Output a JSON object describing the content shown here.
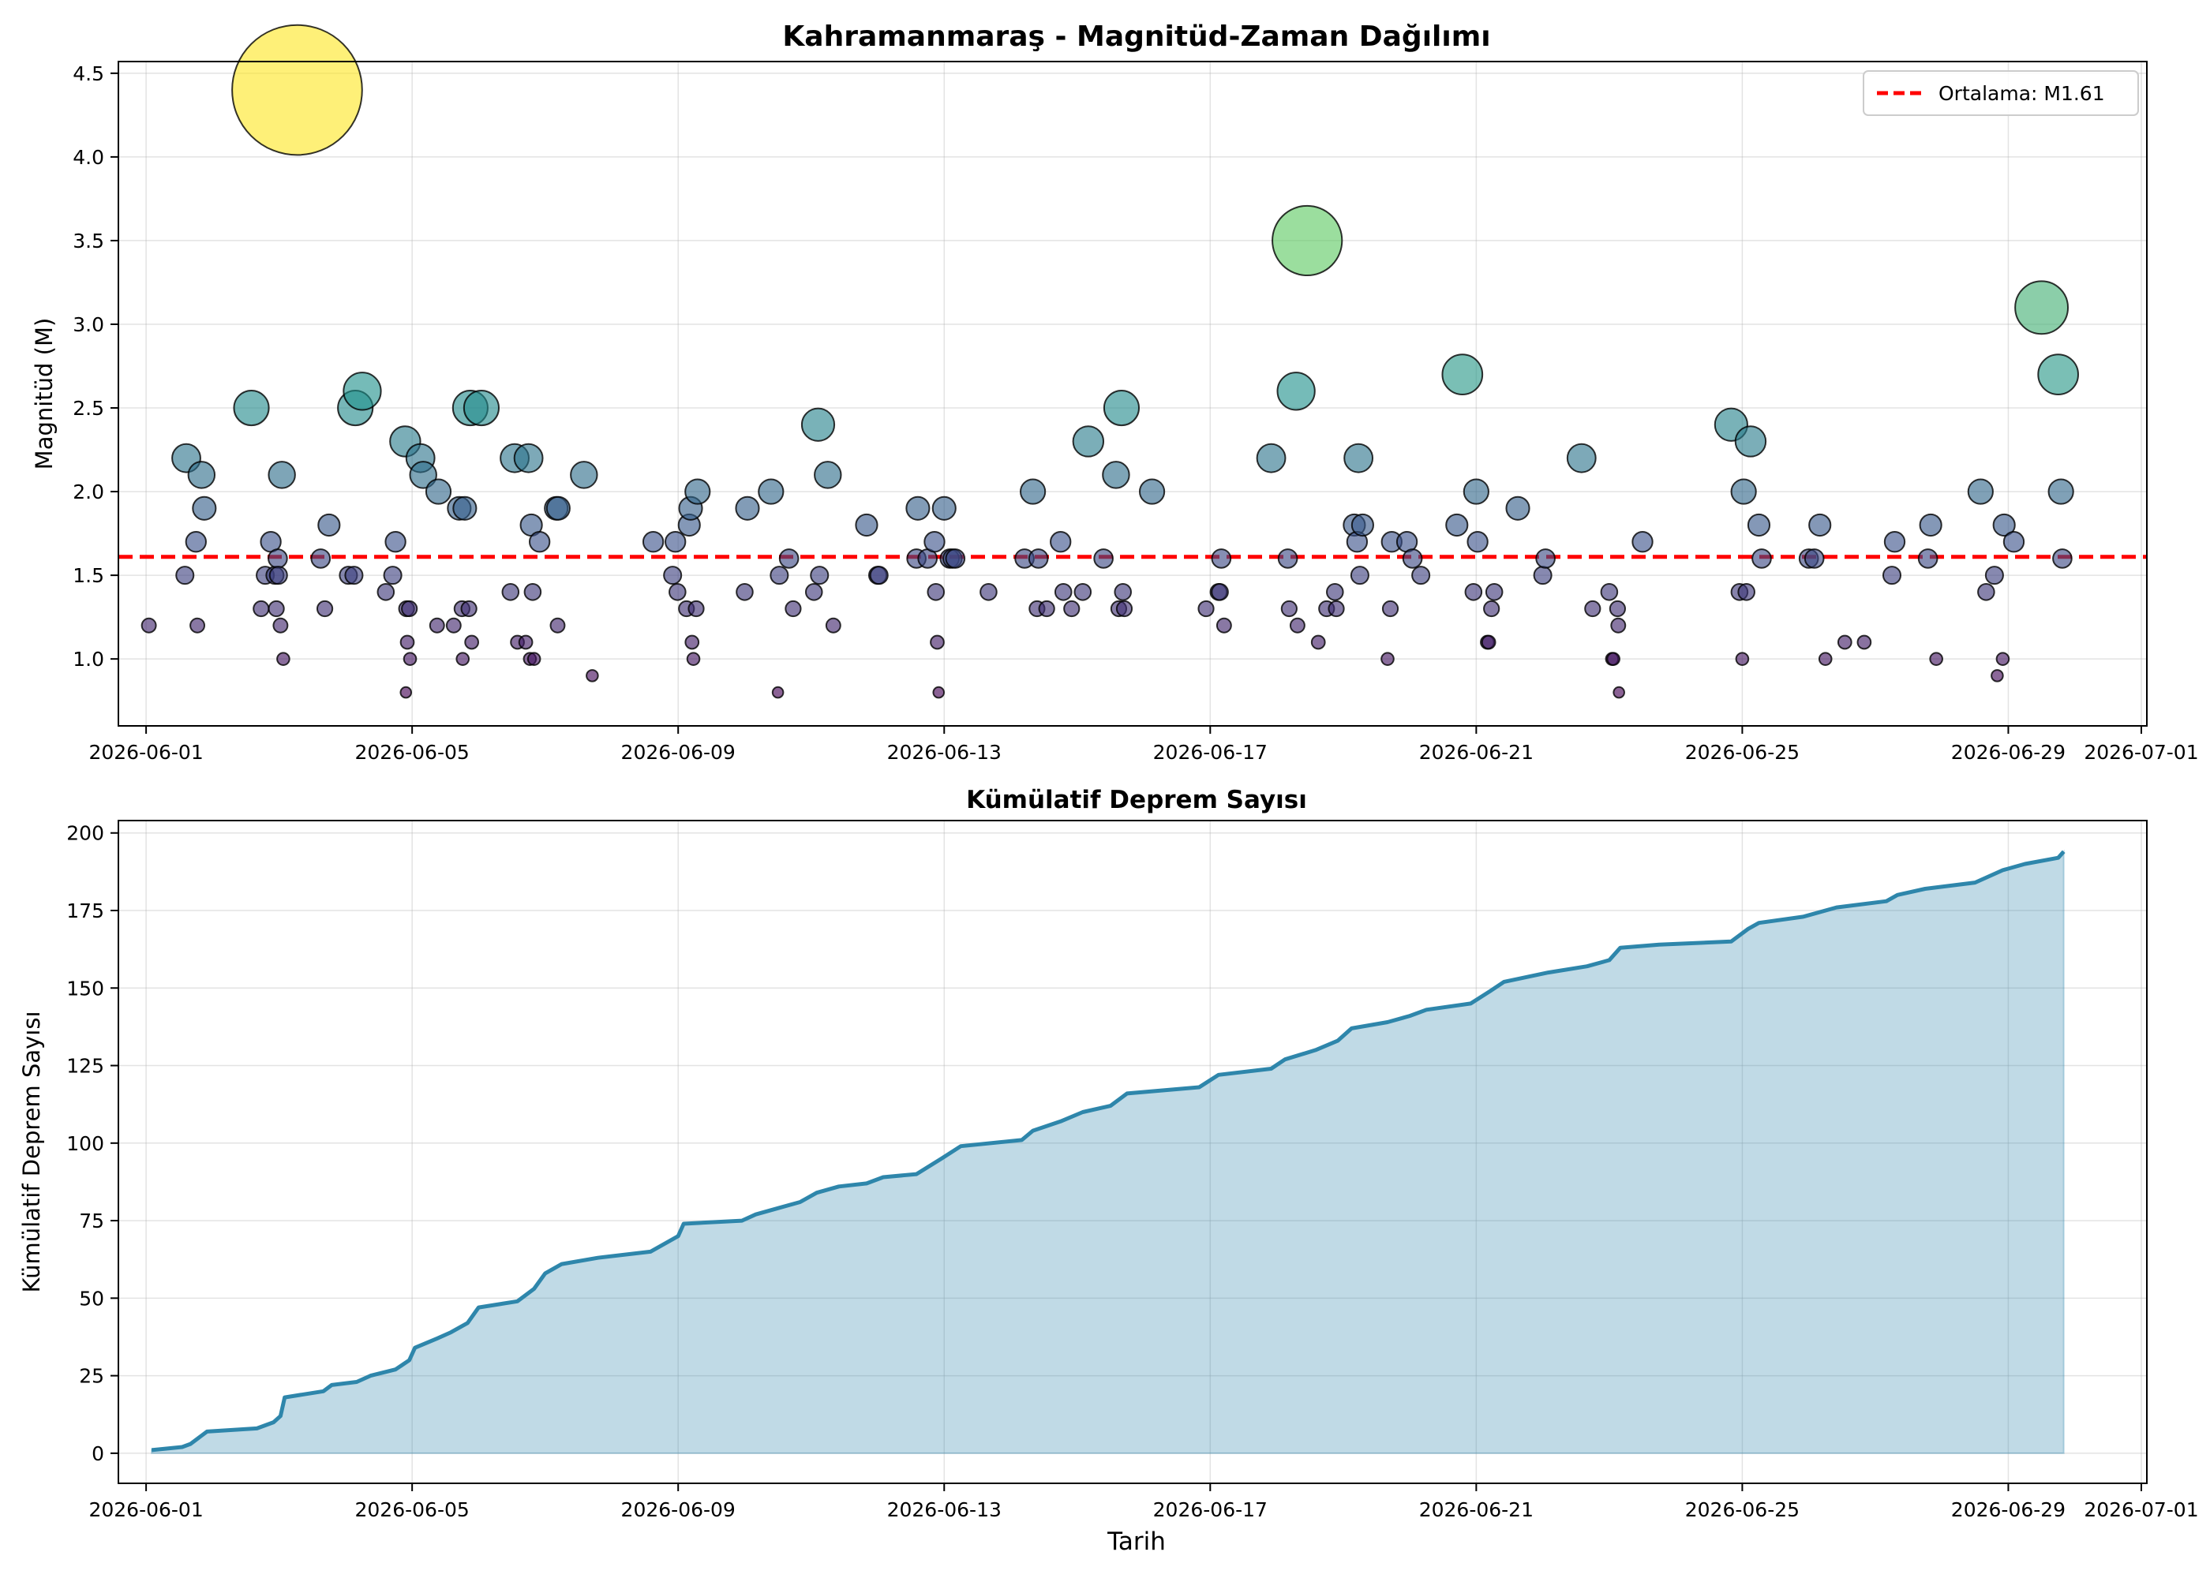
{
  "chart_data": [
    {
      "type": "scatter",
      "title": "Kahramanmaraş - Magnitüd-Zaman Dağılımı",
      "xlabel": "",
      "ylabel": "Magnitüd (M)",
      "xlim": [
        "2026-05-31 14:00",
        "2026-07-01 02:00"
      ],
      "ylim": [
        0.6,
        4.57
      ],
      "grid": true,
      "legend_position": "top-right",
      "x_ticks": [
        "2026-06-01",
        "2026-06-05",
        "2026-06-09",
        "2026-06-13",
        "2026-06-17",
        "2026-06-21",
        "2026-06-25",
        "2026-06-29",
        "2026-07-01"
      ],
      "y_ticks": [
        "1.0",
        "1.5",
        "2.0",
        "2.5",
        "3.0",
        "3.5",
        "4.0",
        "4.5"
      ],
      "colormap": [
        "#440154",
        "#3b528b",
        "#21918c",
        "#5ec962",
        "#fde725"
      ],
      "mean_line": {
        "value": 1.61,
        "label": "Ortalama: M1.61",
        "color": "#ff0000"
      },
      "points": [
        [
          "2026-06-01 01:00",
          1.2
        ],
        [
          "2026-06-01 14:00",
          1.5
        ],
        [
          "2026-06-01 14:30",
          2.2
        ],
        [
          "2026-06-01 18:00",
          1.7
        ],
        [
          "2026-06-01 18:30",
          1.2
        ],
        [
          "2026-06-01 20:00",
          2.1
        ],
        [
          "2026-06-01 21:00",
          1.9
        ],
        [
          "2026-06-02 14:00",
          2.5
        ],
        [
          "2026-06-02 17:30",
          1.3
        ],
        [
          "2026-06-02 19:00",
          1.5
        ],
        [
          "2026-06-02 21:00",
          1.7
        ],
        [
          "2026-06-02 22:30",
          1.5
        ],
        [
          "2026-06-02 23:00",
          1.3
        ],
        [
          "2026-06-02 23:30",
          1.6
        ],
        [
          "2026-06-02 23:45",
          1.5
        ],
        [
          "2026-06-03 00:30",
          1.2
        ],
        [
          "2026-06-03 01:00",
          2.1
        ],
        [
          "2026-06-03 01:30",
          1.0
        ],
        [
          "2026-06-03 06:30",
          4.4
        ],
        [
          "2026-06-03 15:00",
          1.6
        ],
        [
          "2026-06-03 16:30",
          1.3
        ],
        [
          "2026-06-03 18:00",
          1.8
        ],
        [
          "2026-06-04 01:00",
          1.5
        ],
        [
          "2026-06-04 03:00",
          1.5
        ],
        [
          "2026-06-04 03:30",
          2.5
        ],
        [
          "2026-06-04 06:00",
          2.6
        ],
        [
          "2026-06-04 14:30",
          1.4
        ],
        [
          "2026-06-04 17:00",
          1.5
        ],
        [
          "2026-06-04 18:00",
          1.7
        ],
        [
          "2026-06-04 21:30",
          2.3
        ],
        [
          "2026-06-04 21:45",
          0.8
        ],
        [
          "2026-06-04 22:00",
          1.3
        ],
        [
          "2026-06-04 22:15",
          1.1
        ],
        [
          "2026-06-04 23:00",
          1.3
        ],
        [
          "2026-06-04 23:15",
          1.0
        ],
        [
          "2026-06-05 03:00",
          2.2
        ],
        [
          "2026-06-05 04:00",
          2.1
        ],
        [
          "2026-06-05 09:00",
          1.2
        ],
        [
          "2026-06-05 09:30",
          2.0
        ],
        [
          "2026-06-05 15:00",
          1.2
        ],
        [
          "2026-06-05 17:00",
          1.9
        ],
        [
          "2026-06-05 18:00",
          1.3
        ],
        [
          "2026-06-05 18:15",
          1.0
        ],
        [
          "2026-06-05 19:00",
          1.9
        ],
        [
          "2026-06-05 20:30",
          1.3
        ],
        [
          "2026-06-05 21:00",
          2.5
        ],
        [
          "2026-06-05 21:30",
          1.1
        ],
        [
          "2026-06-06 01:00",
          2.5
        ],
        [
          "2026-06-06 11:30",
          1.4
        ],
        [
          "2026-06-06 13:00",
          2.2
        ],
        [
          "2026-06-06 14:00",
          1.1
        ],
        [
          "2026-06-06 17:00",
          1.1
        ],
        [
          "2026-06-06 18:00",
          2.2
        ],
        [
          "2026-06-06 18:30",
          1.0
        ],
        [
          "2026-06-06 19:00",
          1.8
        ],
        [
          "2026-06-06 19:30",
          1.4
        ],
        [
          "2026-06-06 20:00",
          1.0
        ],
        [
          "2026-06-06 22:00",
          1.7
        ],
        [
          "2026-06-07 04:00",
          1.9
        ],
        [
          "2026-06-07 04:30",
          1.2
        ],
        [
          "2026-06-07 04:45",
          1.9
        ],
        [
          "2026-06-07 14:00",
          2.1
        ],
        [
          "2026-06-07 17:00",
          0.9
        ],
        [
          "2026-06-08 15:00",
          1.7
        ],
        [
          "2026-06-08 22:00",
          1.5
        ],
        [
          "2026-06-08 23:00",
          1.7
        ],
        [
          "2026-06-08 23:45",
          1.4
        ],
        [
          "2026-06-09 03:00",
          1.3
        ],
        [
          "2026-06-09 04:00",
          1.8
        ],
        [
          "2026-06-09 04:30",
          1.9
        ],
        [
          "2026-06-09 05:00",
          1.1
        ],
        [
          "2026-06-09 05:30",
          1.0
        ],
        [
          "2026-06-09 06:30",
          1.3
        ],
        [
          "2026-06-09 07:00",
          2.0
        ],
        [
          "2026-06-10 00:00",
          1.4
        ],
        [
          "2026-06-10 01:00",
          1.9
        ],
        [
          "2026-06-10 09:30",
          2.0
        ],
        [
          "2026-06-10 12:00",
          0.8
        ],
        [
          "2026-06-10 12:30",
          1.5
        ],
        [
          "2026-06-10 16:00",
          1.6
        ],
        [
          "2026-06-10 17:30",
          1.3
        ],
        [
          "2026-06-11 01:00",
          1.4
        ],
        [
          "2026-06-11 02:30",
          2.4
        ],
        [
          "2026-06-11 03:00",
          1.5
        ],
        [
          "2026-06-11 06:00",
          2.1
        ],
        [
          "2026-06-11 08:00",
          1.2
        ],
        [
          "2026-06-11 20:00",
          1.8
        ],
        [
          "2026-06-12 00:00",
          1.5
        ],
        [
          "2026-06-12 00:30",
          1.5
        ],
        [
          "2026-06-12 14:00",
          1.6
        ],
        [
          "2026-06-12 14:30",
          1.9
        ],
        [
          "2026-06-12 18:00",
          1.6
        ],
        [
          "2026-06-12 20:30",
          1.7
        ],
        [
          "2026-06-12 21:00",
          1.4
        ],
        [
          "2026-06-12 21:30",
          1.1
        ],
        [
          "2026-06-12 22:00",
          0.8
        ],
        [
          "2026-06-13 00:00",
          1.9
        ],
        [
          "2026-06-13 02:00",
          1.6
        ],
        [
          "2026-06-13 03:00",
          1.6
        ],
        [
          "2026-06-13 04:00",
          1.6
        ],
        [
          "2026-06-13 16:00",
          1.4
        ],
        [
          "2026-06-14 05:00",
          1.6
        ],
        [
          "2026-06-14 08:00",
          2.0
        ],
        [
          "2026-06-14 09:30",
          1.3
        ],
        [
          "2026-06-14 10:00",
          1.6
        ],
        [
          "2026-06-14 13:00",
          1.3
        ],
        [
          "2026-06-14 18:00",
          1.7
        ],
        [
          "2026-06-14 19:00",
          1.4
        ],
        [
          "2026-06-14 22:00",
          1.3
        ],
        [
          "2026-06-15 02:00",
          1.4
        ],
        [
          "2026-06-15 04:00",
          2.3
        ],
        [
          "2026-06-15 09:30",
          1.6
        ],
        [
          "2026-06-15 14:00",
          2.1
        ],
        [
          "2026-06-15 15:00",
          1.3
        ],
        [
          "2026-06-15 16:00",
          2.5
        ],
        [
          "2026-06-15 16:30",
          1.4
        ],
        [
          "2026-06-15 17:00",
          1.3
        ],
        [
          "2026-06-16 03:00",
          2.0
        ],
        [
          "2026-06-16 22:30",
          1.3
        ],
        [
          "2026-06-17 03:00",
          1.4
        ],
        [
          "2026-06-17 03:30",
          1.4
        ],
        [
          "2026-06-17 04:00",
          1.6
        ],
        [
          "2026-06-17 05:00",
          1.2
        ],
        [
          "2026-06-17 22:00",
          2.2
        ],
        [
          "2026-06-18 04:00",
          1.6
        ],
        [
          "2026-06-18 04:30",
          1.3
        ],
        [
          "2026-06-18 07:00",
          2.6
        ],
        [
          "2026-06-18 07:30",
          1.2
        ],
        [
          "2026-06-18 11:00",
          3.5
        ],
        [
          "2026-06-18 15:00",
          1.1
        ],
        [
          "2026-06-18 18:00",
          1.3
        ],
        [
          "2026-06-18 21:00",
          1.4
        ],
        [
          "2026-06-18 21:30",
          1.3
        ],
        [
          "2026-06-19 04:00",
          1.8
        ],
        [
          "2026-06-19 05:00",
          1.7
        ],
        [
          "2026-06-19 05:30",
          2.2
        ],
        [
          "2026-06-19 06:00",
          1.5
        ],
        [
          "2026-06-19 07:00",
          1.8
        ],
        [
          "2026-06-19 16:00",
          1.0
        ],
        [
          "2026-06-19 17:00",
          1.3
        ],
        [
          "2026-06-19 17:30",
          1.7
        ],
        [
          "2026-06-19 23:00",
          1.7
        ],
        [
          "2026-06-20 01:00",
          1.6
        ],
        [
          "2026-06-20 04:00",
          1.5
        ],
        [
          "2026-06-20 17:00",
          1.8
        ],
        [
          "2026-06-20 19:00",
          2.7
        ],
        [
          "2026-06-20 23:00",
          1.4
        ],
        [
          "2026-06-21 00:00",
          2.0
        ],
        [
          "2026-06-21 00:30",
          1.7
        ],
        [
          "2026-06-21 04:00",
          1.1
        ],
        [
          "2026-06-21 04:30",
          1.1
        ],
        [
          "2026-06-21 05:30",
          1.3
        ],
        [
          "2026-06-21 06:30",
          1.4
        ],
        [
          "2026-06-21 15:00",
          1.9
        ],
        [
          "2026-06-22 00:00",
          1.5
        ],
        [
          "2026-06-22 01:00",
          1.6
        ],
        [
          "2026-06-22 14:00",
          2.2
        ],
        [
          "2026-06-22 18:00",
          1.3
        ],
        [
          "2026-06-23 00:00",
          1.4
        ],
        [
          "2026-06-23 01:00",
          1.0
        ],
        [
          "2026-06-23 01:30",
          1.0
        ],
        [
          "2026-06-23 03:00",
          1.3
        ],
        [
          "2026-06-23 03:15",
          1.2
        ],
        [
          "2026-06-23 03:30",
          0.8
        ],
        [
          "2026-06-23 12:00",
          1.7
        ],
        [
          "2026-06-24 20:00",
          2.4
        ],
        [
          "2026-06-24 23:00",
          1.4
        ],
        [
          "2026-06-25 00:00",
          1.0
        ],
        [
          "2026-06-25 00:30",
          2.0
        ],
        [
          "2026-06-25 01:30",
          1.4
        ],
        [
          "2026-06-25 03:00",
          2.3
        ],
        [
          "2026-06-25 06:00",
          1.8
        ],
        [
          "2026-06-25 07:00",
          1.6
        ],
        [
          "2026-06-26 00:00",
          1.6
        ],
        [
          "2026-06-26 02:00",
          1.6
        ],
        [
          "2026-06-26 04:00",
          1.8
        ],
        [
          "2026-06-26 06:00",
          1.0
        ],
        [
          "2026-06-26 13:00",
          1.1
        ],
        [
          "2026-06-26 20:00",
          1.1
        ],
        [
          "2026-06-27 06:00",
          1.5
        ],
        [
          "2026-06-27 07:00",
          1.7
        ],
        [
          "2026-06-27 19:00",
          1.6
        ],
        [
          "2026-06-27 20:00",
          1.8
        ],
        [
          "2026-06-27 22:00",
          1.0
        ],
        [
          "2026-06-28 14:00",
          2.0
        ],
        [
          "2026-06-28 16:00",
          1.4
        ],
        [
          "2026-06-28 19:00",
          1.5
        ],
        [
          "2026-06-28 20:00",
          0.9
        ],
        [
          "2026-06-28 22:00",
          1.0
        ],
        [
          "2026-06-28 22:30",
          1.8
        ],
        [
          "2026-06-29 02:00",
          1.7
        ],
        [
          "2026-06-29 12:00",
          3.1
        ],
        [
          "2026-06-29 18:00",
          2.7
        ],
        [
          "2026-06-29 19:00",
          2.0
        ],
        [
          "2026-06-29 19:30",
          1.6
        ]
      ]
    },
    {
      "type": "area",
      "title": "Kümülatif Deprem Sayısı",
      "xlabel": "Tarih",
      "ylabel": "Kümülatif Deprem Sayısı",
      "xlim": [
        "2026-05-31 14:00",
        "2026-07-01 02:00"
      ],
      "ylim": [
        -9.7,
        204
      ],
      "grid": true,
      "x_ticks": [
        "2026-06-01",
        "2026-06-05",
        "2026-06-09",
        "2026-06-13",
        "2026-06-17",
        "2026-06-21",
        "2026-06-25",
        "2026-06-29",
        "2026-07-01"
      ],
      "y_ticks": [
        "0",
        "25",
        "50",
        "75",
        "100",
        "125",
        "150",
        "175",
        "200"
      ],
      "line_color": "#2e86ab",
      "fill_color": "#2e86ab",
      "points": [
        [
          "2026-06-01 02:00",
          1
        ],
        [
          "2026-06-01 13:00",
          2
        ],
        [
          "2026-06-01 16:00",
          3
        ],
        [
          "2026-06-01 19:00",
          5
        ],
        [
          "2026-06-01 22:00",
          7
        ],
        [
          "2026-06-02 16:00",
          8
        ],
        [
          "2026-06-02 22:00",
          10
        ],
        [
          "2026-06-03 00:30",
          12
        ],
        [
          "2026-06-03 02:00",
          18
        ],
        [
          "2026-06-03 16:00",
          20
        ],
        [
          "2026-06-03 19:00",
          22
        ],
        [
          "2026-06-04 04:00",
          23
        ],
        [
          "2026-06-04 09:00",
          25
        ],
        [
          "2026-06-04 18:00",
          27
        ],
        [
          "2026-06-04 23:00",
          30
        ],
        [
          "2026-06-05 01:00",
          34
        ],
        [
          "2026-06-05 09:00",
          37
        ],
        [
          "2026-06-05 14:00",
          39
        ],
        [
          "2026-06-05 20:00",
          42
        ],
        [
          "2026-06-06 00:00",
          47
        ],
        [
          "2026-06-06 14:00",
          49
        ],
        [
          "2026-06-06 20:00",
          53
        ],
        [
          "2026-06-07 00:00",
          58
        ],
        [
          "2026-06-07 06:00",
          61
        ],
        [
          "2026-06-07 19:00",
          63
        ],
        [
          "2026-06-08 14:00",
          65
        ],
        [
          "2026-06-08 20:00",
          68
        ],
        [
          "2026-06-09 00:00",
          70
        ],
        [
          "2026-06-09 02:00",
          74
        ],
        [
          "2026-06-09 23:00",
          75
        ],
        [
          "2026-06-10 04:00",
          77
        ],
        [
          "2026-06-10 12:00",
          79
        ],
        [
          "2026-06-10 20:00",
          81
        ],
        [
          "2026-06-11 02:00",
          84
        ],
        [
          "2026-06-11 10:00",
          86
        ],
        [
          "2026-06-11 20:00",
          87
        ],
        [
          "2026-06-12 02:00",
          89
        ],
        [
          "2026-06-12 14:00",
          90
        ],
        [
          "2026-06-12 23:00",
          95
        ],
        [
          "2026-06-13 06:00",
          99
        ],
        [
          "2026-06-14 04:00",
          101
        ],
        [
          "2026-06-14 08:00",
          104
        ],
        [
          "2026-06-14 18:00",
          107
        ],
        [
          "2026-06-15 02:00",
          110
        ],
        [
          "2026-06-15 12:00",
          112
        ],
        [
          "2026-06-15 18:00",
          116
        ],
        [
          "2026-06-16 20:00",
          118
        ],
        [
          "2026-06-17 03:00",
          122
        ],
        [
          "2026-06-17 22:00",
          124
        ],
        [
          "2026-06-18 03:00",
          127
        ],
        [
          "2026-06-18 14:00",
          130
        ],
        [
          "2026-06-18 22:00",
          133
        ],
        [
          "2026-06-19 03:00",
          137
        ],
        [
          "2026-06-19 16:00",
          139
        ],
        [
          "2026-06-20 00:00",
          141
        ],
        [
          "2026-06-20 06:00",
          143
        ],
        [
          "2026-06-20 22:00",
          145
        ],
        [
          "2026-06-21 05:00",
          149
        ],
        [
          "2026-06-21 10:00",
          152
        ],
        [
          "2026-06-22 02:00",
          155
        ],
        [
          "2026-06-22 16:00",
          157
        ],
        [
          "2026-06-23 00:00",
          159
        ],
        [
          "2026-06-23 04:00",
          163
        ],
        [
          "2026-06-23 18:00",
          164
        ],
        [
          "2026-06-24 20:00",
          165
        ],
        [
          "2026-06-25 02:00",
          169
        ],
        [
          "2026-06-25 06:00",
          171
        ],
        [
          "2026-06-25 22:00",
          173
        ],
        [
          "2026-06-26 10:00",
          176
        ],
        [
          "2026-06-27 04:00",
          178
        ],
        [
          "2026-06-27 08:00",
          180
        ],
        [
          "2026-06-27 18:00",
          182
        ],
        [
          "2026-06-28 12:00",
          184
        ],
        [
          "2026-06-28 22:00",
          188
        ],
        [
          "2026-06-29 06:00",
          190
        ],
        [
          "2026-06-29 18:00",
          192
        ],
        [
          "2026-06-29 20:00",
          194
        ]
      ]
    }
  ]
}
